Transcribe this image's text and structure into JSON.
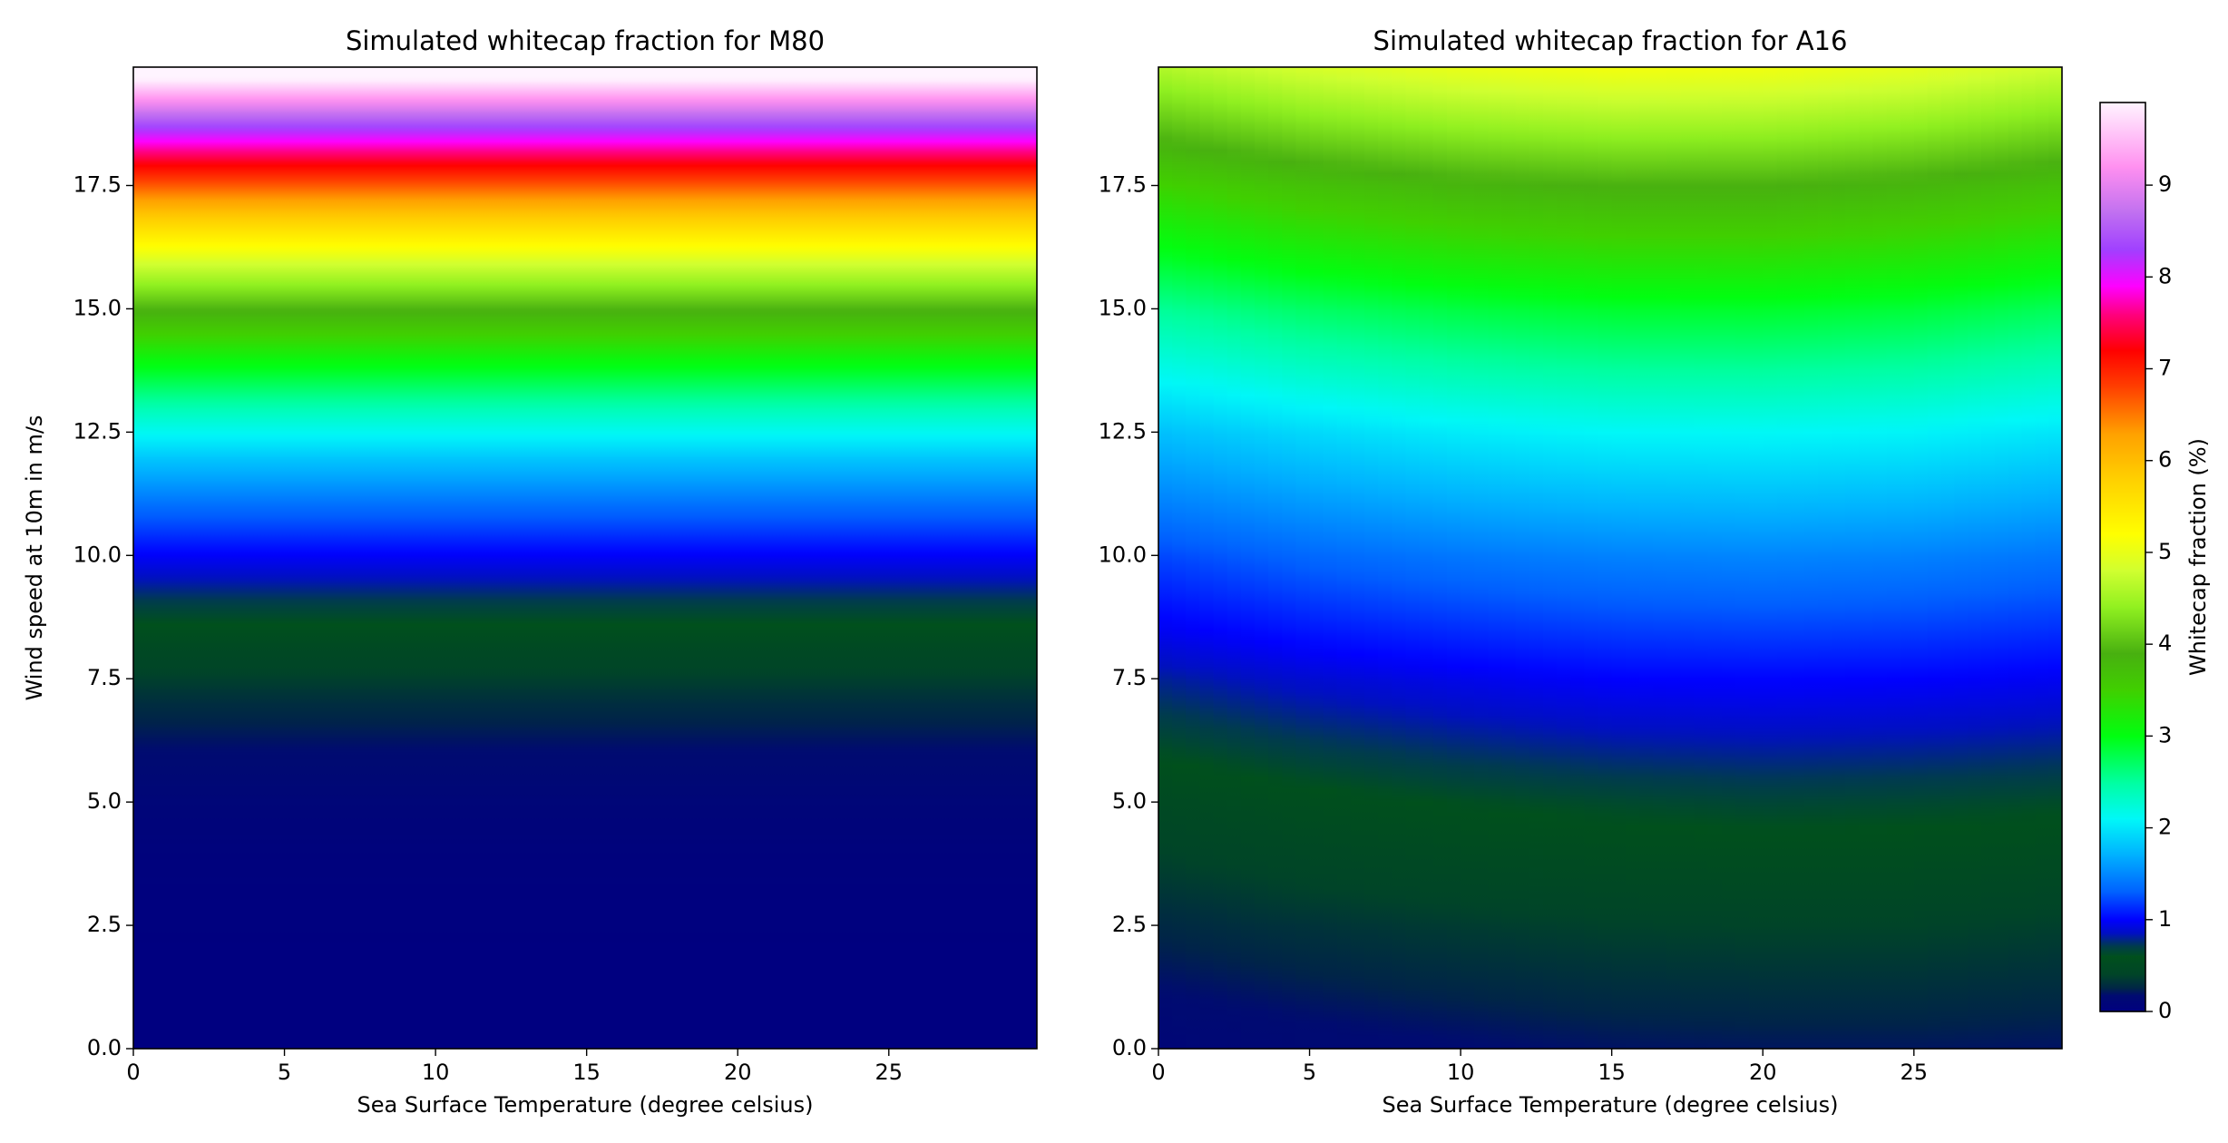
{
  "chart_data": [
    {
      "type": "contour",
      "title": "Simulated whitecap fraction for M80",
      "x_label": "Sea Surface Temperature (degree celsius)",
      "y_label": "Wind speed at 10m in m/s",
      "xlim": [
        0,
        29.9
      ],
      "ylim": [
        0,
        19.9
      ],
      "xticks": [
        0,
        5,
        10,
        15,
        20,
        25
      ],
      "yticks": [
        {
          "value": 0,
          "label": "0.0"
        },
        2.5,
        {
          "value": 5,
          "label": "5.0"
        },
        7.5,
        {
          "value": 10,
          "label": "10.0"
        },
        12.5,
        {
          "value": 15,
          "label": "15.0"
        },
        17.5
      ],
      "x": [
        0,
        29.9
      ],
      "y": [
        0,
        1,
        2,
        3,
        4,
        5,
        6,
        7,
        8,
        9,
        10,
        11,
        12,
        13,
        14,
        15,
        16,
        17,
        18,
        19,
        19.9
      ],
      "z": [
        [
          0,
          0
        ],
        [
          0.0004,
          0.0004
        ],
        [
          0.0041,
          0.0041
        ],
        [
          0.0163,
          0.0163
        ],
        [
          0.0434,
          0.0434
        ],
        [
          0.0929,
          0.0929
        ],
        [
          0.173,
          0.173
        ],
        [
          0.293,
          0.293
        ],
        [
          0.461,
          0.461
        ],
        [
          0.689,
          0.689
        ],
        [
          0.987,
          0.987
        ],
        [
          1.367,
          1.367
        ],
        [
          1.838,
          1.838
        ],
        [
          2.416,
          2.416
        ],
        [
          3.105,
          3.105
        ],
        [
          3.93,
          3.93
        ],
        [
          4.9,
          4.9
        ],
        [
          6.02,
          6.02
        ],
        [
          7.32,
          7.32
        ],
        [
          8.8,
          8.8
        ],
        [
          10.3,
          10.3
        ]
      ]
    },
    {
      "type": "contour",
      "title": "Simulated whitecap fraction for A16",
      "x_label": "Sea Surface Temperature (degree celsius)",
      "xlim": [
        0,
        29.9
      ],
      "ylim": [
        0,
        19.9
      ],
      "xticks": [
        0,
        5,
        10,
        15,
        20,
        25
      ],
      "yticks": [
        {
          "value": 0,
          "label": "0.0"
        },
        2.5,
        {
          "value": 5,
          "label": "5.0"
        },
        7.5,
        {
          "value": 10,
          "label": "10.0"
        },
        12.5,
        {
          "value": 15,
          "label": "15.0"
        },
        17.5
      ],
      "x": [
        0,
        5,
        10,
        15,
        20,
        25,
        29.9
      ],
      "y": [
        0,
        2.5,
        5,
        7.5,
        10,
        12.5,
        15,
        17.5,
        19.9
      ],
      "z": [
        [
          0.1,
          0.14,
          0.17,
          0.2,
          0.21,
          0.21,
          0.2
        ],
        [
          0.27,
          0.32,
          0.36,
          0.39,
          0.4,
          0.4,
          0.38
        ],
        [
          0.49,
          0.56,
          0.61,
          0.64,
          0.66,
          0.65,
          0.63
        ],
        [
          0.8,
          0.89,
          0.95,
          1.0,
          1.01,
          1.0,
          0.97
        ],
        [
          1.22,
          1.34,
          1.42,
          1.47,
          1.49,
          1.47,
          1.41
        ],
        [
          1.79,
          1.93,
          2.04,
          2.1,
          2.11,
          2.08,
          2.0
        ],
        [
          2.53,
          2.71,
          2.83,
          2.9,
          2.91,
          2.86,
          2.75
        ],
        [
          3.48,
          3.69,
          3.84,
          3.91,
          3.91,
          3.83,
          3.69
        ],
        [
          4.61,
          4.86,
          5.02,
          5.1,
          5.08,
          4.98,
          4.79
        ]
      ]
    },
    {
      "type": "colorbar",
      "label": "Whitecap fraction (%)",
      "zlim": [
        0,
        9.9
      ],
      "ticks": [
        0,
        1,
        2,
        3,
        4,
        5,
        6,
        7,
        8,
        9
      ],
      "colorscale": [
        {
          "value": 0,
          "color": "#000080"
        },
        {
          "value": 0.18,
          "color": "#000b70"
        },
        {
          "value": 0.25,
          "color": "#002448"
        },
        {
          "value": 0.4,
          "color": "#004428"
        },
        {
          "value": 0.6,
          "color": "#00501c"
        },
        {
          "value": 0.72,
          "color": "#003a50"
        },
        {
          "value": 0.85,
          "color": "#0010c0"
        },
        {
          "value": 1.0,
          "color": "#0000ff"
        },
        {
          "value": 1.3,
          "color": "#0060ff"
        },
        {
          "value": 1.7,
          "color": "#00b0ff"
        },
        {
          "value": 2.1,
          "color": "#00f8f8"
        },
        {
          "value": 2.5,
          "color": "#00ffa0"
        },
        {
          "value": 3.0,
          "color": "#00ff10"
        },
        {
          "value": 3.5,
          "color": "#40d000"
        },
        {
          "value": 3.9,
          "color": "#48b010"
        },
        {
          "value": 4.4,
          "color": "#90f020"
        },
        {
          "value": 4.8,
          "color": "#d0ff30"
        },
        {
          "value": 5.2,
          "color": "#ffff00"
        },
        {
          "value": 5.8,
          "color": "#ffd000"
        },
        {
          "value": 6.3,
          "color": "#ffa000"
        },
        {
          "value": 6.8,
          "color": "#ff4000"
        },
        {
          "value": 7.2,
          "color": "#ff0000"
        },
        {
          "value": 7.6,
          "color": "#ff0080"
        },
        {
          "value": 7.9,
          "color": "#ff00ff"
        },
        {
          "value": 8.3,
          "color": "#a040ff"
        },
        {
          "value": 8.7,
          "color": "#c070f0"
        },
        {
          "value": 9.2,
          "color": "#ff90f0"
        },
        {
          "value": 9.9,
          "color": "#fff4ff"
        }
      ]
    }
  ]
}
